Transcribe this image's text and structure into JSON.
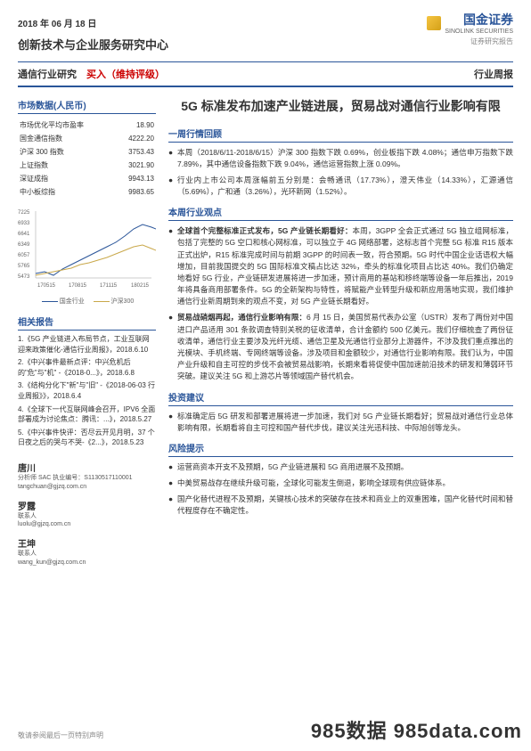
{
  "header": {
    "date": "2018 年 06 月 18 日",
    "logo_text": "国金证券",
    "logo_sub": "SINOLINK SECURITIES",
    "logo_sub2": "证券研究报告",
    "center": "创新技术与企业服务研究中心",
    "industry": "通信行业研究",
    "rating": "买入（维持评级）",
    "right_label": "行业周报"
  },
  "market_data": {
    "title": "市场数据(人民币)",
    "rows": [
      {
        "label": "市场优化平均市盈率",
        "value": "18.90"
      },
      {
        "label": "国金通信指数",
        "value": "4222.20"
      },
      {
        "label": "沪深 300 指数",
        "value": "3753.43"
      },
      {
        "label": "上证指数",
        "value": "3021.90"
      },
      {
        "label": "深证成指",
        "value": "9943.13"
      },
      {
        "label": "中小板综指",
        "value": "9983.65"
      }
    ]
  },
  "chart": {
    "y_ticks": [
      "7225",
      "6933",
      "6641",
      "6349",
      "6057",
      "5765",
      "5473"
    ],
    "x_ticks": [
      "170515",
      "170815",
      "171115",
      "180215"
    ],
    "legend1": "国金行业",
    "legend2": "沪深300",
    "line1_color": "#2a5599",
    "line2_color": "#c9a84a",
    "line1_points": "0,70 10,68 20,72 30,65 40,60 50,55 60,50 70,45 80,40 90,35 100,28 110,20 120,15 130,18 140,22 150,30",
    "line2_points": "0,72 10,70 20,68 30,66 40,64 50,60 60,58 70,55 80,52 90,48 100,44 110,40 120,38 130,42 140,46 150,50"
  },
  "related": {
    "title": "相关报告",
    "items": [
      "1.《5G 产业链进入布局节点，工业互联网迎来政策催化-通信行业周报》，2018.6.10",
      "2.《中兴事件最新点评：中兴危机后的\"危\"与\"机\" -《2018-0...》，2018.6.8",
      "3.《结构分化下\"新\"与\"旧\" -《2018-06-03 行业周报》》，2018.6.4",
      "4.《全球下一代互联网峰会召开，IPV6 全面部署成为讨论焦点：腾讯：...》，2018.5.27",
      "5.《中兴事件快评：否尽云开见月明，37 个日夜之后的哭与不哭-《2...》，2018.5.23"
    ]
  },
  "analysts": [
    {
      "name": "唐川",
      "role": "分析师 SAC 执业编号：S1130517110001",
      "email": "tangchuan@gjzq.com.cn"
    },
    {
      "name": "罗露",
      "role": "联系人",
      "email": "luolu@gjzq.com.cn"
    },
    {
      "name": "王坤",
      "role": "联系人",
      "email": "wang_kun@gjzq.com.cn"
    }
  ],
  "main": {
    "title": "5G 标准发布加速产业链进展，贸易战对通信行业影响有限",
    "sections": [
      {
        "title": "一周行情回顾",
        "bullets": [
          {
            "lead": "",
            "text": "本周（2018/6/11-2018/6/15）沪深 300 指数下跌 0.69%，创业板指下跌 4.08%；通信申万指数下跌 7.89%，其中通信设备指数下跌 9.04%，通信运营指数上涨 0.09%。"
          },
          {
            "lead": "",
            "text": "行业内上市公司本周涨幅前五分别是：会畅通讯（17.73%），澄天伟业（14.33%），汇源通信（5.69%），广和通（3.26%），光环新网（1.52%）。"
          }
        ]
      },
      {
        "title": "本周行业观点",
        "bullets": [
          {
            "lead": "全球首个完整标准正式发布，5G 产业链长期看好：",
            "text": "本周，3GPP 全会正式通过 5G 独立组网标准，包括了完整的 5G 空口和核心网标准，可以独立于 4G 网络部署，这标志首个完整 5G 标准 R15 版本正式出炉，R15 标准完成时间与前期 3GPP 的时间表一致，符合预期。5G 时代中国企业话语权大幅增加，目前我国提交的 5G 国际标准文稿占比达 32%，牵头的标准化项目占比达 40%。我们仍确定地看好 5G 行业，产业链研发进展将进一步加速，预计商用的基站和移终端等设备一年后推出，2019 年将具备商用部署条件。5G 的全新架构与特性，将赋能产业转型升级和新应用落地实现，我们维护通信行业新周期到来的观点不变，对 5G 产业链长期看好。"
          },
          {
            "lead": "贸易战硝烟再起，通信行业影响有限：",
            "text": "6 月 15 日，美国贸易代表办公室（USTR）发布了两份对中国进口产品适用 301 条款调查特别关税的征收清单，合计金额约 500 亿美元。我们仔细梳查了两份征收清单，通信行业主要涉及光纤光缆、通信卫星及光通信行业部分上游器件，不涉及我们重点推出的光模块、手机终端、专网终端等设备。涉及项目和金额较少，对通信行业影响有限。我们认为，中国产业升级和自主可控的步伐不会被贸易战影响，长期来看将促使中国加速前沿技术的研发和薄弱环节突破。建议关注 5G 和上游芯片等领域国产替代机会。"
          }
        ]
      },
      {
        "title": "投资建议",
        "bullets": [
          {
            "lead": "",
            "text": "标准确定后 5G 研发和部署进展将进一步加速，我们对 5G 产业链长期看好；贸易战对通信行业总体影响有限，长期看将自主可控和国产替代步伐，建议关注光迅科技、中际旭创等龙头。"
          }
        ]
      },
      {
        "title": "风险提示",
        "bullets": [
          {
            "lead": "",
            "text": "运营商资本开支不及预期，5G 产业链进展和 5G 商用进展不及预期。"
          },
          {
            "lead": "",
            "text": "中美贸易战存在继续升级可能，全球化可能发生倒退，影响全球现有供应链体系。"
          },
          {
            "lead": "",
            "text": "国产化替代进程不及预期，关键核心技术的突破存在技术和商业上的双重困难，国产化替代时间和替代程度存在不确定性。"
          }
        ]
      }
    ]
  },
  "footer": "敬请参阅最后一页特别声明",
  "watermark": "985数据 985data.com"
}
